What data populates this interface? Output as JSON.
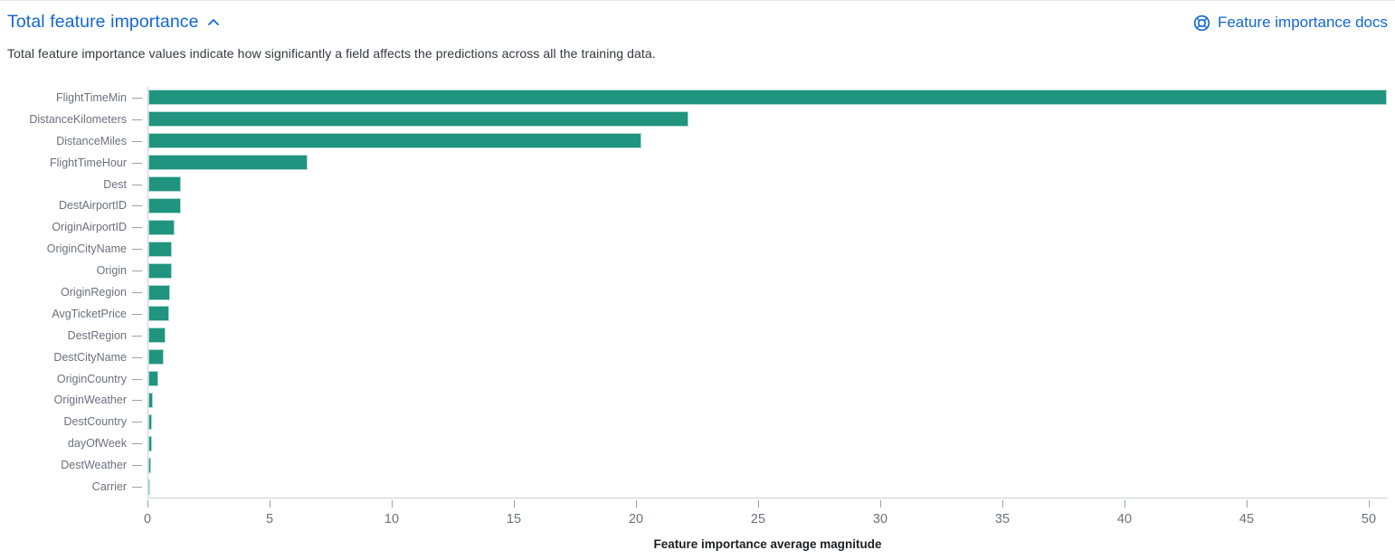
{
  "header": {
    "title": "Total feature importance",
    "collapse_icon": "chevron-up-icon",
    "docs_icon": "help-icon",
    "docs_link": "Feature importance docs"
  },
  "description": "Total feature importance values indicate how significantly a field affects the predictions across all the training data.",
  "colors": {
    "link_blue": "#1267d2",
    "bar_teal": "#20947f",
    "axis_text": "#6a717d",
    "axis_line": "#ccd3e0",
    "description_text": "#343741"
  },
  "chart_data": {
    "type": "bar",
    "orientation": "horizontal",
    "title": "",
    "xlabel": "Feature importance average magnitude",
    "ylabel": "",
    "categories": [
      "FlightTimeMin",
      "DistanceKilometers",
      "DistanceMiles",
      "FlightTimeHour",
      "Dest",
      "DestAirportID",
      "OriginAirportID",
      "OriginCityName",
      "Origin",
      "OriginRegion",
      "AvgTicketPrice",
      "DestRegion",
      "DestCityName",
      "OriginCountry",
      "OriginWeather",
      "DestCountry",
      "dayOfWeek",
      "DestWeather",
      "Carrier"
    ],
    "values": [
      50.7,
      22.1,
      20.2,
      6.5,
      1.35,
      1.32,
      1.08,
      0.98,
      0.96,
      0.9,
      0.85,
      0.72,
      0.62,
      0.42,
      0.17,
      0.16,
      0.15,
      0.12,
      0.04
    ],
    "x_ticks": [
      0,
      5,
      10,
      15,
      20,
      25,
      30,
      35,
      40,
      45,
      50
    ],
    "xlim": [
      0,
      50.75
    ],
    "grid": false,
    "legend": "none",
    "bar_color": "#20947f"
  }
}
